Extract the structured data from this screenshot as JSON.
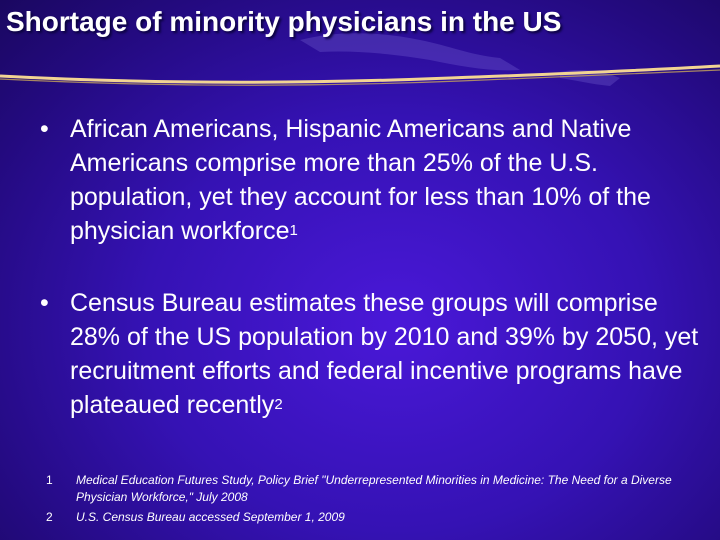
{
  "slide": {
    "title": "Shortage of minority physicians in the US",
    "bullet_glyph": "•",
    "bullets": [
      {
        "text": "African Americans, Hispanic Americans and Native Americans comprise more than 25% of the U.S. population, yet they account for less than 10% of the physician workforce",
        "ref": "1"
      },
      {
        "text": "Census Bureau estimates these groups will comprise 28% of the US population by 2010 and 39% by 2050, yet recruitment efforts and federal incentive programs have plateaued recently",
        "ref": "2"
      }
    ],
    "footnotes": [
      {
        "num": "1",
        "text": "Medical Education Futures Study, Policy Brief \"Underrepresented Minorities in Medicine: The Need for a Diverse Physician Workforce,\" July 2008"
      },
      {
        "num": "2",
        "text": "U.S. Census Bureau accessed September 1, 2009"
      }
    ]
  },
  "colors": {
    "background": "#3512b4",
    "text": "#ffffff",
    "rule": "#f2d493"
  }
}
